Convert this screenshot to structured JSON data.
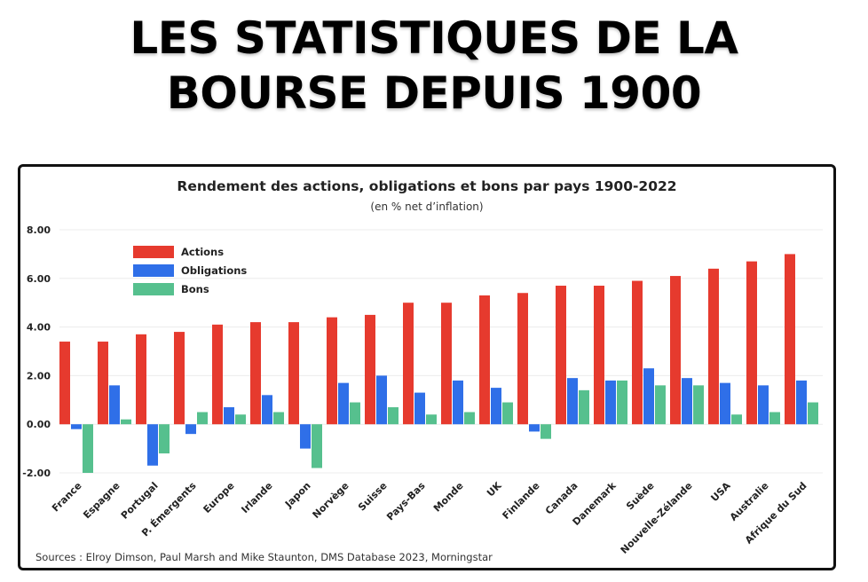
{
  "page": {
    "title_lines": [
      "LES STATISTIQUES DE LA",
      "BOURSE DEPUIS 1900"
    ],
    "source": "Sources : Elroy Dimson, Paul Marsh and Mike Staunton, DMS Database 2023, Morningstar"
  },
  "chart_data": {
    "type": "bar",
    "title": "Rendement des actions, obligations et bons par pays 1900-2022",
    "subtitle": "(en % net d’inflation)",
    "xlabel": "",
    "ylabel": "",
    "ylim": [
      -2,
      8
    ],
    "yticks": [
      8,
      6,
      4,
      2,
      0,
      -2
    ],
    "ytick_labels": [
      "8.00",
      "6.00",
      "4.00",
      "2.00",
      "0.00",
      "-2.00"
    ],
    "grid": true,
    "legend_position": "top-left",
    "categories": [
      "France",
      "Espagne",
      "Portugal",
      "P. Émergents",
      "Europe",
      "Irlande",
      "Japon",
      "Norvège",
      "Suisse",
      "Pays-Bas",
      "Monde",
      "UK",
      "Finlande",
      "Canada",
      "Danemark",
      "Suède",
      "Nouvelle-Zélande",
      "USA",
      "Australie",
      "Afrique du Sud"
    ],
    "series": [
      {
        "name": "Actions",
        "color": "#e63a2e",
        "values": [
          3.4,
          3.4,
          3.7,
          3.8,
          4.1,
          4.2,
          4.2,
          4.4,
          4.5,
          5.0,
          5.0,
          5.3,
          5.4,
          5.7,
          5.7,
          5.9,
          6.1,
          6.4,
          6.7,
          7.0
        ]
      },
      {
        "name": "Obligations",
        "color": "#2f6fe8",
        "values": [
          -0.2,
          1.6,
          -1.7,
          -0.4,
          0.7,
          1.2,
          -1.0,
          1.7,
          2.0,
          1.3,
          1.8,
          1.5,
          -0.3,
          1.9,
          1.8,
          2.3,
          1.9,
          1.7,
          1.6,
          1.8
        ]
      },
      {
        "name": "Bons",
        "color": "#56c08e",
        "values": [
          -2.0,
          0.2,
          -1.2,
          0.5,
          0.4,
          0.5,
          -1.8,
          0.9,
          0.7,
          0.4,
          0.5,
          0.9,
          -0.6,
          1.4,
          1.8,
          1.6,
          1.6,
          0.4,
          0.5,
          0.9
        ]
      }
    ]
  }
}
